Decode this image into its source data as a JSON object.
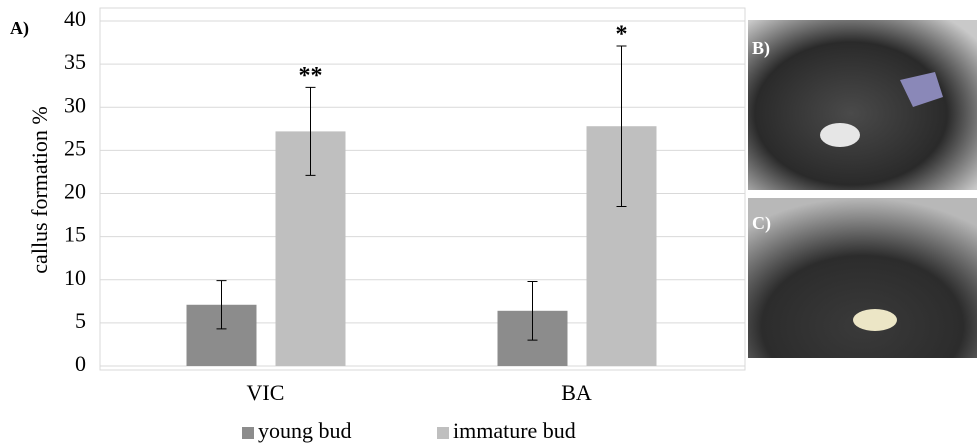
{
  "chart_data": {
    "type": "bar",
    "panel_label": "A)",
    "y_label": "callus formation %",
    "categories": [
      "VIC",
      "BA"
    ],
    "series": [
      {
        "name": "young bud",
        "color": "#8c8c8c",
        "values": [
          7.1,
          6.4
        ],
        "errors": [
          2.8,
          3.4
        ]
      },
      {
        "name": "immature bud",
        "color": "#bfbfbf",
        "values": [
          27.2,
          27.8
        ],
        "errors": [
          5.1,
          9.3
        ],
        "significance": [
          "**",
          "*"
        ]
      }
    ],
    "ylim": [
      0,
      40
    ],
    "yticks": [
      0,
      5,
      10,
      15,
      20,
      25,
      30,
      35,
      40
    ],
    "grid": true,
    "photo_labels": [
      "B)",
      "C)"
    ]
  }
}
